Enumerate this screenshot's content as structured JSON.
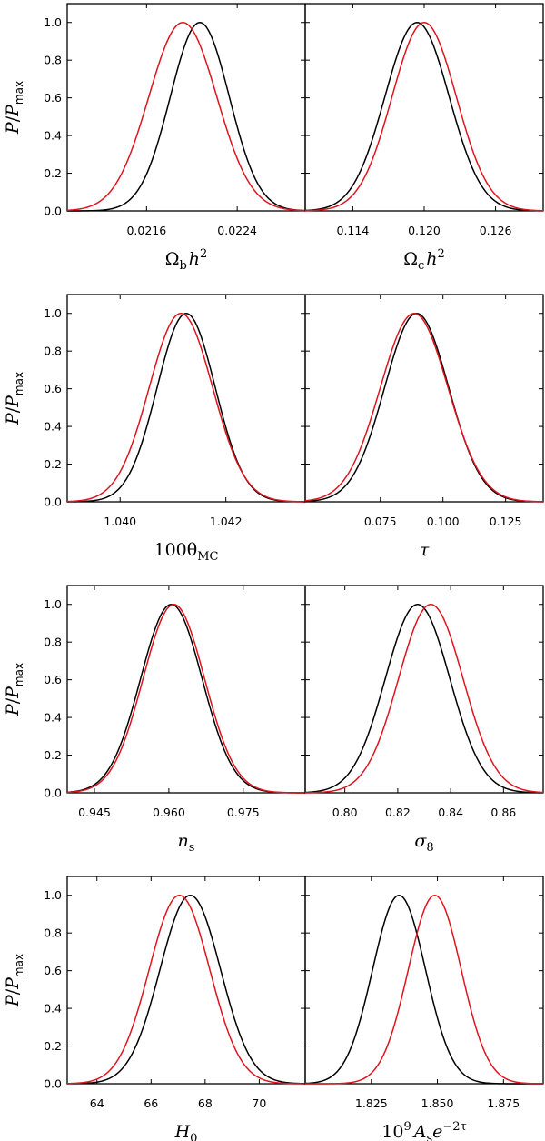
{
  "figure": {
    "ylabel_main": "P",
    "ylabel_slash": "/",
    "ylabel_sym": "P",
    "ylabel_sub": "max",
    "yticks": [
      "0.0",
      "0.2",
      "0.4",
      "0.6",
      "0.8",
      "1.0"
    ],
    "ylim": [
      0,
      1.1
    ],
    "series_colors": {
      "black": "#000000",
      "red": "#e0141e"
    }
  },
  "chart_data": [
    {
      "type": "line",
      "parameter": "Omega_b h^2",
      "xlabel": {
        "base": "Ω",
        "sub": "b",
        "mid": "h",
        "sup": "2"
      },
      "xlim": [
        0.0209,
        0.023
      ],
      "xticks": [
        0.0216,
        0.0224
      ],
      "xtick_labels": [
        "0.0216",
        "0.0224"
      ],
      "ylim": [
        0,
        1.1
      ],
      "series": [
        {
          "name": "black",
          "peak": 0.02207,
          "sigma": 0.00026
        },
        {
          "name": "red",
          "peak": 0.02192,
          "sigma": 0.0003
        }
      ]
    },
    {
      "type": "line",
      "parameter": "Omega_c h^2",
      "xlabel": {
        "base": "Ω",
        "sub": "c",
        "mid": "h",
        "sup": "2"
      },
      "xlim": [
        0.11,
        0.13
      ],
      "xticks": [
        0.114,
        0.12,
        0.126
      ],
      "xtick_labels": [
        "0.114",
        "0.120",
        "0.126"
      ],
      "ylim": [
        0,
        1.1
      ],
      "series": [
        {
          "name": "black",
          "peak": 0.1194,
          "sigma": 0.0027
        },
        {
          "name": "red",
          "peak": 0.12,
          "sigma": 0.0027
        }
      ]
    },
    {
      "type": "line",
      "parameter": "100 theta_MC",
      "xlabel": {
        "base": "100θ",
        "sub": "MC"
      },
      "xlim": [
        1.039,
        1.0435
      ],
      "xticks": [
        1.04,
        1.042
      ],
      "xtick_labels": [
        "1.040",
        "1.042"
      ],
      "ylim": [
        0,
        1.1
      ],
      "series": [
        {
          "name": "black",
          "peak": 1.04125,
          "sigma": 0.00055
        },
        {
          "name": "red",
          "peak": 1.04115,
          "sigma": 0.0006
        }
      ]
    },
    {
      "type": "line",
      "parameter": "tau",
      "xlabel": {
        "base": "τ"
      },
      "xlim": [
        0.045,
        0.14
      ],
      "xticks": [
        0.075,
        0.1,
        0.125
      ],
      "xtick_labels": [
        "0.075",
        "0.100",
        "0.125"
      ],
      "ylim": [
        0,
        1.1
      ],
      "series": [
        {
          "name": "black",
          "peak": 0.0895,
          "sigma": 0.0128
        },
        {
          "name": "red",
          "peak": 0.0885,
          "sigma": 0.0135
        }
      ]
    },
    {
      "type": "line",
      "parameter": "n_s",
      "xlabel": {
        "base": "n",
        "sub": "s"
      },
      "xlim": [
        0.9395,
        0.9875
      ],
      "xticks": [
        0.945,
        0.96,
        0.975
      ],
      "xtick_labels": [
        "0.945",
        "0.960",
        "0.975"
      ],
      "ylim": [
        0,
        1.1
      ],
      "series": [
        {
          "name": "black",
          "peak": 0.9605,
          "sigma": 0.0062
        },
        {
          "name": "red",
          "peak": 0.961,
          "sigma": 0.0062
        }
      ]
    },
    {
      "type": "line",
      "parameter": "sigma_8",
      "xlabel": {
        "base": "σ",
        "sub": "8"
      },
      "xlim": [
        0.785,
        0.875
      ],
      "xticks": [
        0.8,
        0.82,
        0.84,
        0.86
      ],
      "xtick_labels": [
        "0.80",
        "0.82",
        "0.84",
        "0.86"
      ],
      "ylim": [
        0,
        1.1
      ],
      "series": [
        {
          "name": "black",
          "peak": 0.8275,
          "sigma": 0.0122
        },
        {
          "name": "red",
          "peak": 0.8325,
          "sigma": 0.0122
        }
      ]
    },
    {
      "type": "line",
      "parameter": "H_0",
      "xlabel": {
        "base": "H",
        "sub": "0"
      },
      "xlim": [
        62.9,
        71.7
      ],
      "xticks": [
        64,
        66,
        68,
        70
      ],
      "xtick_labels": [
        "64",
        "66",
        "68",
        "70"
      ],
      "ylim": [
        0,
        1.1
      ],
      "series": [
        {
          "name": "black",
          "peak": 67.45,
          "sigma": 1.12
        },
        {
          "name": "red",
          "peak": 67.05,
          "sigma": 1.12
        }
      ]
    },
    {
      "type": "line",
      "parameter": "10^9 A_s e^{-2tau}",
      "xlabel": {
        "base": "10",
        "sup": "9",
        "mid": "A",
        "sub": "s",
        "tail": "e",
        "sup2": "−2τ"
      },
      "xlim": [
        1.8,
        1.89
      ],
      "xticks": [
        1.825,
        1.85,
        1.875
      ],
      "xtick_labels": [
        "1.825",
        "1.850",
        "1.875"
      ],
      "ylim": [
        0,
        1.1
      ],
      "series": [
        {
          "name": "black",
          "peak": 1.8355,
          "sigma": 0.01
        },
        {
          "name": "red",
          "peak": 1.849,
          "sigma": 0.01
        }
      ]
    }
  ]
}
